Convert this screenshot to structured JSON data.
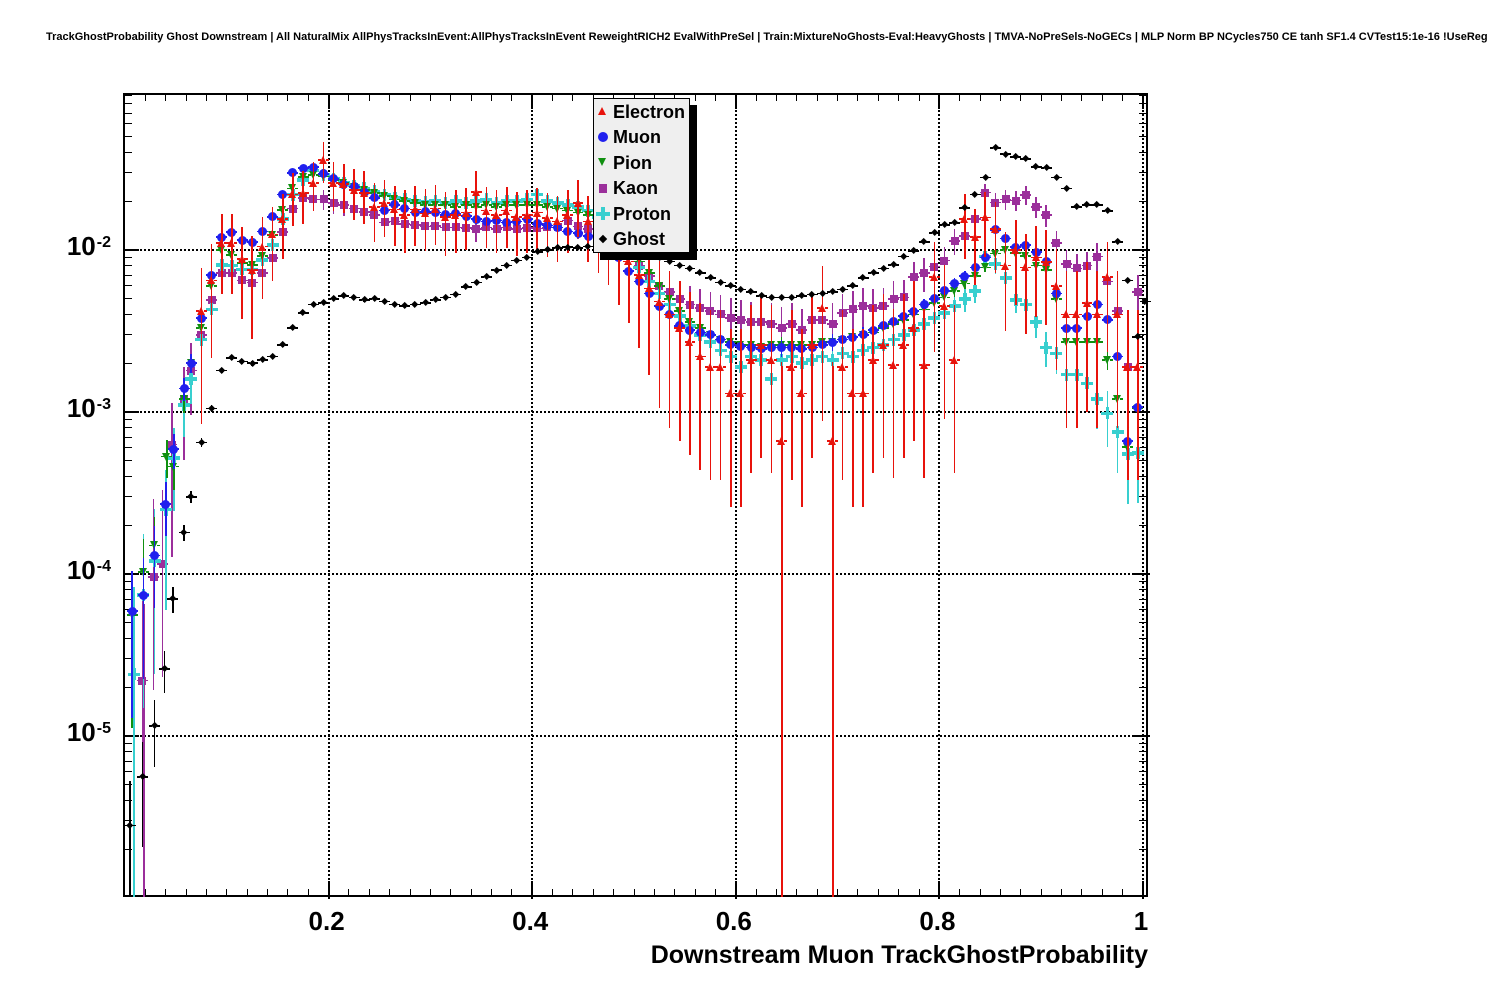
{
  "chart_data": {
    "type": "scatter",
    "title": "TrackGhostProbability Ghost Downstream | All NaturalMix AllPhysTracksInEvent:AllPhysTracksInEvent ReweightRICH2 EvalWithPreSel | Train:MixtureNoGhosts-Eval:HeavyGhosts | TMVA-NoPreSels-NoGECs | MLP Norm BP NCycles750 CE tanh SF1.4 CVTest15:1e-16 !UseReg",
    "xlabel": "Downstream Muon TrackGhostProbability",
    "ylabel": "",
    "x_range": [
      0,
      1.007
    ],
    "y_scale": "log",
    "y_range": [
      1e-06,
      0.0905
    ],
    "grid": "dotted",
    "legend_position": "top-center",
    "x_ticks": [
      {
        "v": 0.2,
        "label": "0.2"
      },
      {
        "v": 0.4,
        "label": "0.4"
      },
      {
        "v": 0.6,
        "label": "0.6"
      },
      {
        "v": 0.8,
        "label": "0.8"
      },
      {
        "v": 1,
        "label": "1"
      }
    ],
    "y_ticks": [
      {
        "exp": -2
      },
      {
        "exp": -3
      },
      {
        "exp": -4
      },
      {
        "exp": -5
      }
    ],
    "x_gridlines": [
      0.2,
      0.4,
      0.6,
      0.8,
      1.0
    ],
    "bin_width": 0.01,
    "series": [
      {
        "name": "Electron",
        "color": "#e8130c",
        "marker": "triangle-up",
        "err_coeff": 0.054,
        "low_points": [],
        "x0": 0.075,
        "dx": 0.01,
        "y": [
          0.0042,
          0.0065,
          0.011,
          0.011,
          0.0088,
          0.0075,
          0.0105,
          0.0125,
          0.0155,
          0.022,
          0.0225,
          0.026,
          0.036,
          0.026,
          0.0255,
          0.0235,
          0.0225,
          0.0185,
          0.0195,
          0.0178,
          0.0165,
          0.0178,
          0.0168,
          0.018,
          0.016,
          0.0165,
          0.017,
          0.0228,
          0.0175,
          0.0165,
          0.0175,
          0.016,
          0.0165,
          0.017,
          0.0158,
          0.015,
          0.0165,
          0.0195,
          0.015,
          0.0135,
          0.012,
          0.01,
          0.0085,
          0.007,
          0.0058,
          0.0048,
          0.004,
          0.0033,
          0.0027,
          0.0022,
          0.0019,
          0.0019,
          0.0013,
          0.0013,
          0.0021,
          0.0026,
          0.0021,
          0.00066,
          0.0019,
          0.0013,
          0.0026,
          0.0044,
          0.00066,
          0.0019,
          0.0013,
          0.0013,
          0.0021,
          0.0026,
          0.00195,
          0.0026,
          0.0033,
          0.00195,
          0.0068,
          0.0045,
          0.0021,
          0.0155,
          0.012,
          0.0159,
          0.0135,
          0.008,
          0.01,
          0.0078,
          0.009,
          0.0084,
          0.006,
          0.004,
          0.004,
          0.0047,
          0.004,
          0.0068,
          0.004,
          0.0019,
          0.0019
        ]
      },
      {
        "name": "Muon",
        "color": "#2020ee",
        "marker": "circle",
        "err_coeff": 0.006,
        "low_points": [
          [
            0.007,
            5.9e-05
          ],
          [
            0.018,
            7.4e-05
          ],
          [
            0.029,
            0.00013
          ],
          [
            0.04,
            0.00027
          ],
          [
            0.048,
            0.00059
          ],
          [
            0.058,
            0.0014
          ]
        ],
        "x0": 0.065,
        "dx": 0.01,
        "y": [
          0.002,
          0.0038,
          0.007,
          0.012,
          0.0129,
          0.0115,
          0.0112,
          0.013,
          0.016,
          0.022,
          0.03,
          0.032,
          0.0325,
          0.0295,
          0.0275,
          0.0255,
          0.0245,
          0.0225,
          0.021,
          0.0175,
          0.019,
          0.018,
          0.017,
          0.0172,
          0.017,
          0.0165,
          0.0168,
          0.0162,
          0.0155,
          0.015,
          0.0152,
          0.0148,
          0.015,
          0.0155,
          0.0145,
          0.0142,
          0.0138,
          0.013,
          0.0127,
          0.0122,
          0.0115,
          0.0108,
          0.009,
          0.0074,
          0.0064,
          0.0054,
          0.0045,
          0.004,
          0.0034,
          0.0032,
          0.0031,
          0.003,
          0.0028,
          0.0026,
          0.00255,
          0.0025,
          0.00245,
          0.0025,
          0.0025,
          0.0025,
          0.00245,
          0.0025,
          0.0026,
          0.0027,
          0.0028,
          0.0029,
          0.003,
          0.0032,
          0.0034,
          0.0036,
          0.0039,
          0.0042,
          0.0046,
          0.005,
          0.0056,
          0.0062,
          0.0069,
          0.0078,
          0.009,
          0.0133,
          0.0118,
          0.0104,
          0.0107,
          0.0097,
          0.0085,
          0.0054,
          0.0033,
          0.0033,
          0.0039,
          0.0046,
          0.0037,
          0.0022,
          0.00066,
          0.00107
        ]
      },
      {
        "name": "Pion",
        "color": "#109010",
        "marker": "triangle-down",
        "err_coeff": 0.006,
        "low_points": [
          [
            0.007,
            5.6e-05
          ],
          [
            0.018,
            0.000103
          ],
          [
            0.029,
            0.00015
          ],
          [
            0.041,
            0.00053
          ],
          [
            0.048,
            0.00046
          ],
          [
            0.058,
            0.0012
          ]
        ],
        "x0": 0.065,
        "dx": 0.01,
        "y": [
          0.002,
          0.0033,
          0.006,
          0.01,
          0.0093,
          0.0083,
          0.0081,
          0.0092,
          0.0124,
          0.0177,
          0.024,
          0.0283,
          0.029,
          0.0285,
          0.027,
          0.026,
          0.0245,
          0.0235,
          0.0225,
          0.0215,
          0.0205,
          0.02,
          0.0195,
          0.019,
          0.019,
          0.019,
          0.0185,
          0.019,
          0.0185,
          0.019,
          0.0185,
          0.019,
          0.019,
          0.019,
          0.019,
          0.0185,
          0.018,
          0.0175,
          0.017,
          0.0165,
          0.0155,
          0.014,
          0.012,
          0.01,
          0.0085,
          0.0072,
          0.006,
          0.005,
          0.0042,
          0.0036,
          0.0033,
          0.003,
          0.0028,
          0.0027,
          0.0026,
          0.0026,
          0.0025,
          0.0026,
          0.0026,
          0.0026,
          0.0026,
          0.0026,
          0.0027,
          0.0027,
          0.0028,
          0.0029,
          0.003,
          0.0031,
          0.0033,
          0.0035,
          0.0037,
          0.004,
          0.0043,
          0.0047,
          0.0051,
          0.0056,
          0.0062,
          0.0069,
          0.0078,
          0.0095,
          0.01,
          0.0096,
          0.0092,
          0.008,
          0.0075,
          0.005,
          0.0027,
          0.0027,
          0.0027,
          0.0027,
          0.0021,
          0.0012,
          0.00061,
          0.00105
        ]
      },
      {
        "name": "Kaon",
        "color": "#9b2f9b",
        "marker": "square",
        "err_coeff": 0.02,
        "low_points": [
          [
            0.017,
            2.2e-05
          ],
          [
            0.028,
            9.6e-05
          ],
          [
            0.037,
            0.000115
          ],
          [
            0.046,
            0.00063
          ],
          [
            0.058,
            0.0012
          ]
        ],
        "x0": 0.065,
        "dx": 0.01,
        "y": [
          0.0018,
          0.003,
          0.0049,
          0.0072,
          0.0072,
          0.0065,
          0.0063,
          0.0072,
          0.0089,
          0.0129,
          0.018,
          0.021,
          0.0205,
          0.0205,
          0.0195,
          0.019,
          0.018,
          0.0172,
          0.0165,
          0.0148,
          0.015,
          0.0145,
          0.0143,
          0.014,
          0.0141,
          0.0138,
          0.0138,
          0.0137,
          0.0135,
          0.0138,
          0.0135,
          0.0138,
          0.0135,
          0.0137,
          0.0136,
          0.0138,
          0.0138,
          0.0152,
          0.014,
          0.0135,
          0.013,
          0.0118,
          0.0105,
          0.0092,
          0.008,
          0.0069,
          0.006,
          0.0055,
          0.005,
          0.0046,
          0.0044,
          0.0042,
          0.004,
          0.0038,
          0.0037,
          0.0036,
          0.0036,
          0.0035,
          0.0033,
          0.0035,
          0.0032,
          0.0037,
          0.0037,
          0.0035,
          0.0041,
          0.0043,
          0.0045,
          0.0044,
          0.0045,
          0.005,
          0.0051,
          0.0068,
          0.0072,
          0.0079,
          0.0086,
          0.0114,
          0.0122,
          0.0155,
          0.0226,
          0.0196,
          0.0205,
          0.0202,
          0.0219,
          0.0185,
          0.0165,
          0.011,
          0.0082,
          0.0077,
          0.008,
          0.0091,
          0.0064,
          0.0042,
          0.0019,
          0.0055
        ]
      },
      {
        "name": "Proton",
        "color": "#38cfcf",
        "marker": "plus",
        "err_coeff": 0.012,
        "low_points": [
          [
            0.009,
            2.4e-05
          ],
          [
            0.018,
            7.4e-05
          ],
          [
            0.029,
            0.00012
          ],
          [
            0.04,
            0.00025
          ],
          [
            0.048,
            0.00052
          ],
          [
            0.058,
            0.0011
          ]
        ],
        "x0": 0.065,
        "dx": 0.01,
        "y": [
          0.0016,
          0.0028,
          0.0043,
          0.0081,
          0.008,
          0.0076,
          0.0076,
          0.0087,
          0.0107,
          0.0155,
          0.022,
          0.027,
          0.031,
          0.029,
          0.0275,
          0.026,
          0.025,
          0.024,
          0.023,
          0.022,
          0.021,
          0.0205,
          0.02,
          0.0198,
          0.02,
          0.0195,
          0.02,
          0.0195,
          0.02,
          0.0205,
          0.0195,
          0.02,
          0.02,
          0.0205,
          0.022,
          0.02,
          0.0195,
          0.019,
          0.0185,
          0.0175,
          0.016,
          0.0138,
          0.0115,
          0.0095,
          0.0078,
          0.0064,
          0.0054,
          0.0046,
          0.0039,
          0.0034,
          0.003,
          0.0027,
          0.0024,
          0.0022,
          0.0019,
          0.0022,
          0.0021,
          0.0016,
          0.0021,
          0.0022,
          0.002,
          0.0021,
          0.0022,
          0.0021,
          0.0023,
          0.0022,
          0.0024,
          0.0025,
          0.0026,
          0.0028,
          0.003,
          0.0032,
          0.0035,
          0.0038,
          0.0041,
          0.0045,
          0.005,
          0.0056,
          0.0091,
          0.0082,
          0.0067,
          0.0049,
          0.0046,
          0.0036,
          0.0025,
          0.0023,
          0.0017,
          0.0017,
          0.0015,
          0.0012,
          0.00098,
          0.00075,
          0.00055,
          0.00056
        ]
      },
      {
        "name": "Ghost",
        "color": "#000000",
        "marker": "diamond",
        "err_coeff": 0.0015,
        "low_points": [
          [
            0.005,
            2.8e-06
          ],
          [
            0.017,
            5.6e-06
          ],
          [
            0.029,
            1.15e-05
          ],
          [
            0.039,
            2.6e-05
          ],
          [
            0.047,
            7e-05
          ],
          [
            0.058,
            0.00018
          ],
          [
            1.002,
            0.0048
          ]
        ],
        "x0": 0.065,
        "dx": 0.01,
        "y": [
          0.0003,
          0.00065,
          0.00105,
          0.0018,
          0.00215,
          0.00205,
          0.002,
          0.0021,
          0.0022,
          0.0026,
          0.0033,
          0.0041,
          0.0046,
          0.0047,
          0.005,
          0.0052,
          0.0051,
          0.0049,
          0.005,
          0.0048,
          0.0046,
          0.0045,
          0.0046,
          0.0047,
          0.0049,
          0.0051,
          0.0053,
          0.0059,
          0.0063,
          0.0068,
          0.0075,
          0.008,
          0.0086,
          0.009,
          0.0097,
          0.01,
          0.0103,
          0.0104,
          0.0103,
          0.0105,
          0.0106,
          0.0106,
          0.0105,
          0.0103,
          0.01,
          0.0096,
          0.009,
          0.0085,
          0.008,
          0.0077,
          0.0072,
          0.0067,
          0.0063,
          0.006,
          0.0057,
          0.0055,
          0.0052,
          0.0051,
          0.0051,
          0.0051,
          0.0052,
          0.0053,
          0.0054,
          0.0055,
          0.0057,
          0.006,
          0.0067,
          0.0072,
          0.0077,
          0.0081,
          0.0091,
          0.0099,
          0.0112,
          0.0127,
          0.0143,
          0.0147,
          0.0182,
          0.022,
          0.028,
          0.0426,
          0.039,
          0.0375,
          0.0365,
          0.0325,
          0.032,
          0.028,
          0.024,
          0.0185,
          0.019,
          0.019,
          0.0174,
          0.0112,
          0.0065,
          0.0029
        ]
      }
    ],
    "deep_error_bars": [
      {
        "series": "Proton",
        "x": 0.009,
        "y_top": 7.5e-05
      },
      {
        "series": "Kaon",
        "x": 0.0185,
        "y_top": 6.5e-05
      },
      {
        "series": "Electron",
        "x": 0.645,
        "y_top": 0.0022
      },
      {
        "series": "Electron",
        "x": 0.695,
        "y_top": 0.0022
      }
    ]
  }
}
